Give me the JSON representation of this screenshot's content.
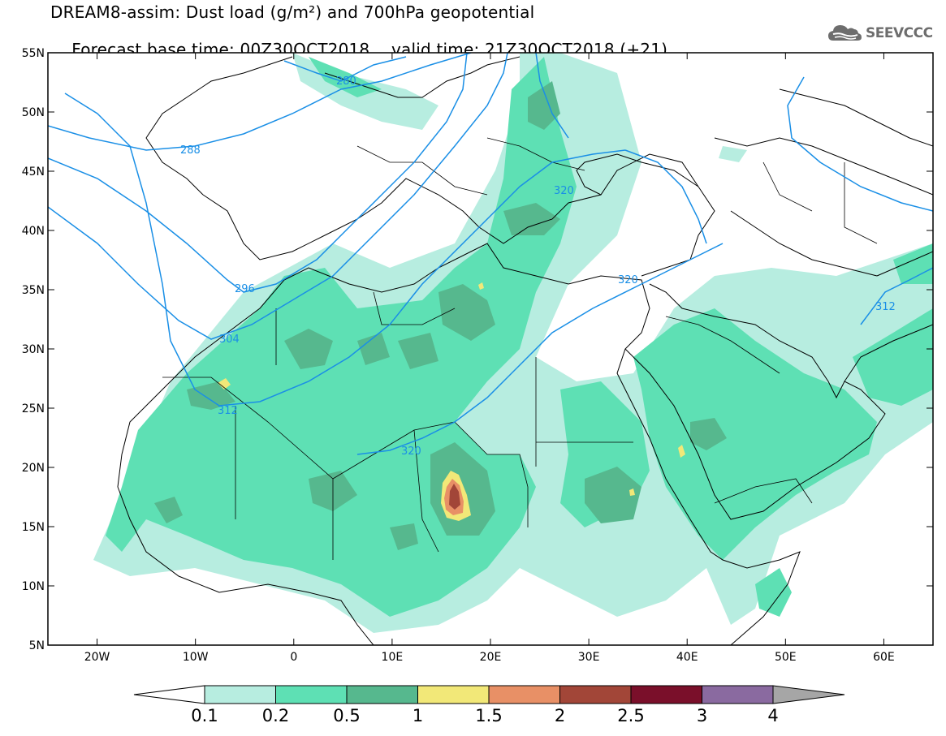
{
  "header": {
    "line1": "DREAM8-assim: Dust load (g/m²) and 700hPa geopotential",
    "line2_base": "Forecast base time: 00Z30OCT2018",
    "line2_valid": "valid time: 21Z30OCT2018 (+21)"
  },
  "logo": {
    "text": "SEEVCCC",
    "icon": "cloud-icon"
  },
  "map": {
    "projection": "equirectangular",
    "lon_range": [
      -25,
      65
    ],
    "lat_range": [
      5,
      55
    ],
    "lat_ticks": [
      "55N",
      "50N",
      "45N",
      "40N",
      "35N",
      "30N",
      "25N",
      "20N",
      "15N",
      "10N",
      "5N"
    ],
    "lon_ticks": [
      "20W",
      "10W",
      "0",
      "10E",
      "20E",
      "30E",
      "40E",
      "50E",
      "60E"
    ],
    "contour_color": "#1a8fe6",
    "contour_labels": [
      "280",
      "288",
      "296",
      "304",
      "312",
      "320",
      "320",
      "320",
      "312"
    ]
  },
  "colorbar": {
    "colors": [
      "#b7ede0",
      "#5ee0b4",
      "#56b88e",
      "#f2e878",
      "#e89066",
      "#a24638",
      "#7a0f2a",
      "#8a6aa0",
      "#a6a6a6"
    ],
    "labels": [
      "0.1",
      "0.2",
      "0.5",
      "1",
      "1.5",
      "2",
      "2.5",
      "3",
      "4"
    ]
  }
}
